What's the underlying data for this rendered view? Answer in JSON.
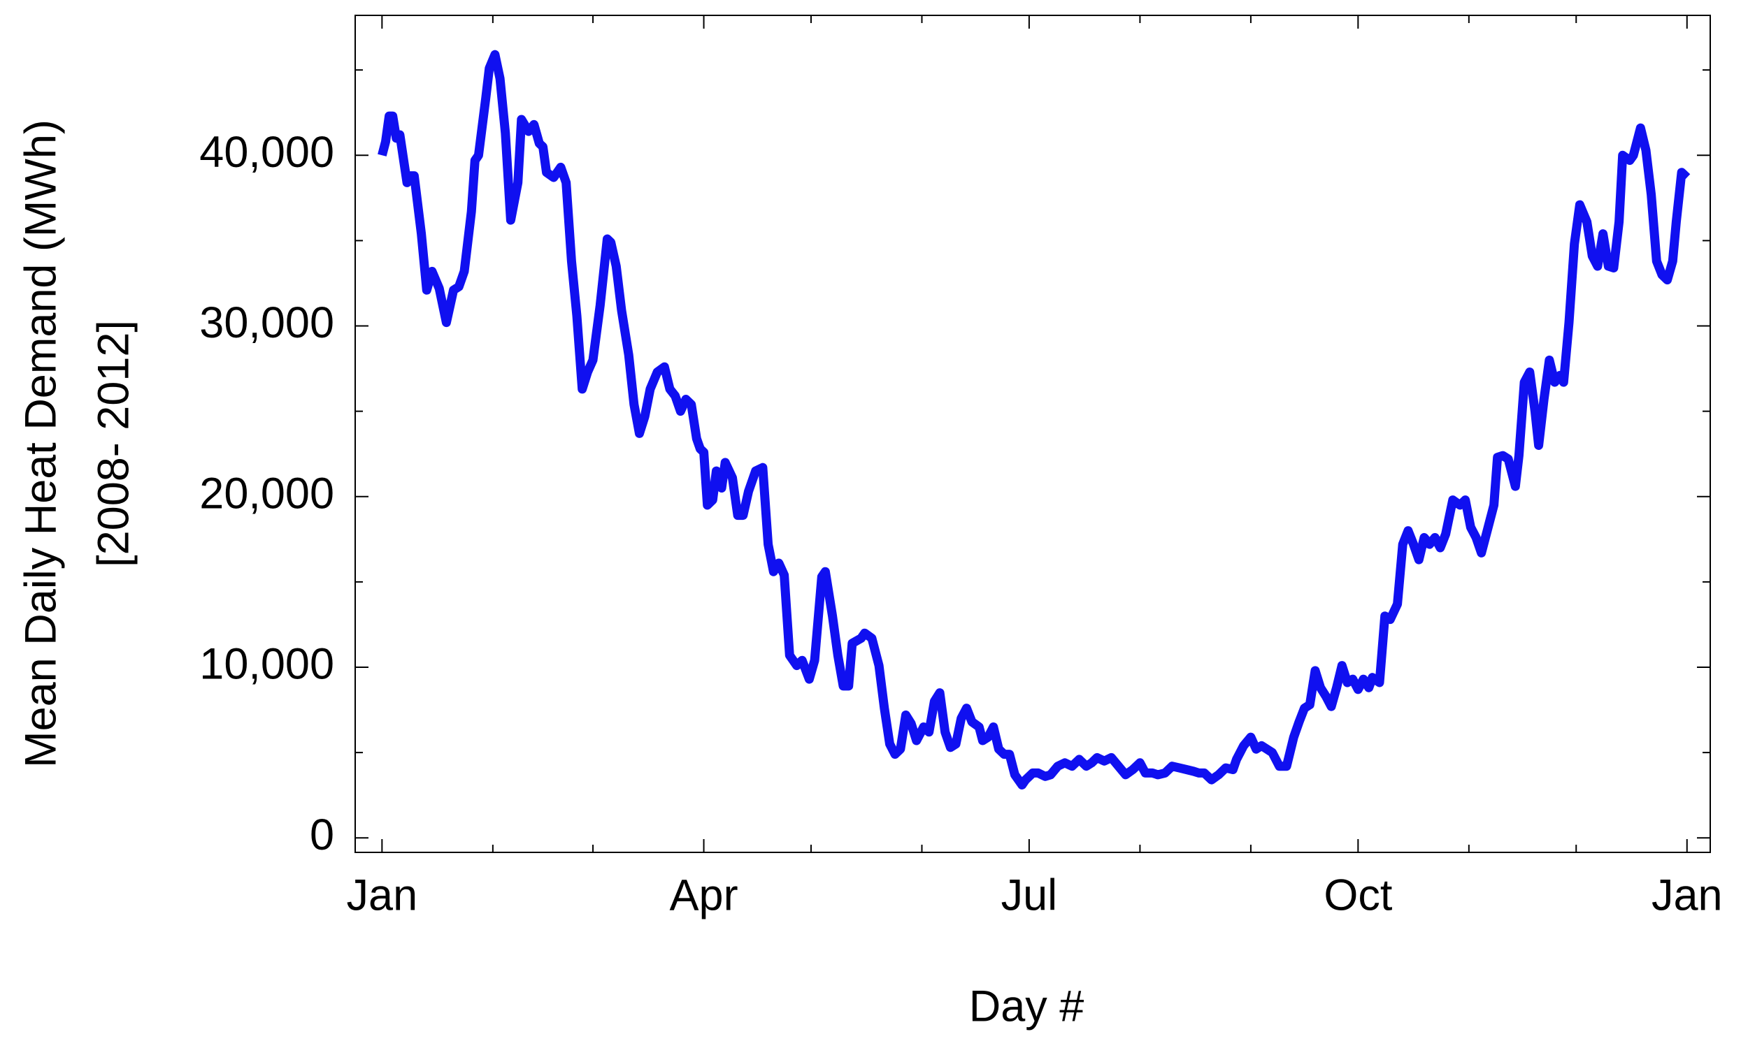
{
  "chart_data": {
    "type": "line",
    "xlabel": "Day #",
    "ylabel": [
      "Mean Daily Heat Demand (MWh)",
      "[2008- 2012]"
    ],
    "color": "#1010f0",
    "xlim": [
      -6.5,
      372.5
    ],
    "ylim": [
      -850,
      48200
    ],
    "xticks": [
      {
        "value": 1,
        "label": "Jan"
      },
      {
        "value": 91,
        "label": "Apr"
      },
      {
        "value": 182,
        "label": "Jul"
      },
      {
        "value": 274,
        "label": "Oct"
      },
      {
        "value": 366,
        "label": "Jan"
      }
    ],
    "xminorticks": [
      32,
      60,
      121,
      152,
      213,
      244,
      305,
      335
    ],
    "yticks": [
      0,
      {
        "value": 10000,
        "label": "10,000"
      },
      {
        "value": 20000,
        "label": "20,000"
      },
      {
        "value": 30000,
        "label": "30,000"
      },
      {
        "value": 40000,
        "label": "40,000"
      }
    ],
    "yminorticks": [
      5000,
      15000,
      25000,
      35000,
      45000
    ],
    "x": [
      1,
      2,
      3,
      4,
      5,
      6,
      8,
      9,
      10,
      12,
      13.5,
      15,
      17,
      19,
      21,
      22.5,
      24,
      26,
      27,
      28,
      30,
      31,
      32.6,
      34,
      35.5,
      37,
      39,
      40,
      42,
      43.5,
      45,
      46,
      47,
      49,
      51,
      52.5,
      54,
      55.5,
      57,
      58.5,
      60,
      62,
      64,
      65,
      66.5,
      68,
      70,
      71.5,
      73,
      74.5,
      76,
      78,
      80,
      81.5,
      83,
      84.5,
      86,
      87.5,
      89,
      90,
      91,
      92,
      93.5,
      94.5,
      96,
      97,
      99,
      100.5,
      102,
      103.5,
      105.5,
      107.5,
      109,
      110.5,
      112,
      113.5,
      115,
      117,
      118.5,
      120.5,
      122,
      124,
      125,
      127,
      128.5,
      130,
      131.5,
      132.5,
      135,
      136,
      138,
      140,
      141.5,
      143,
      144.5,
      146,
      147.5,
      149,
      150.5,
      152.5,
      154,
      155.5,
      157,
      158.5,
      160,
      161.5,
      163,
      164.5,
      166,
      168,
      169,
      170.5,
      172,
      173.5,
      175,
      176.5,
      178,
      180,
      181,
      183,
      184.5,
      186.5,
      188,
      190,
      192,
      194,
      196,
      198,
      199.5,
      201,
      203,
      205,
      207,
      209,
      211,
      213,
      214.5,
      216.5,
      218,
      220,
      222,
      224,
      226,
      228,
      229.5,
      231,
      233,
      235,
      237,
      239,
      240,
      242,
      244,
      245.5,
      247,
      248.5,
      250,
      252,
      254,
      256,
      257.5,
      259,
      260.5,
      262,
      263.5,
      265,
      266.5,
      268,
      269.5,
      271,
      272.5,
      274,
      275.5,
      277,
      278,
      280,
      281.5,
      283,
      285,
      286.5,
      288,
      289.5,
      291,
      292.5,
      294,
      295.5,
      297,
      298.5,
      300.5,
      302.5,
      304,
      305.5,
      307,
      308.5,
      310,
      312,
      313,
      314.5,
      316,
      318,
      319,
      320.5,
      322,
      323.5,
      324.5,
      326,
      327.5,
      329,
      330.5,
      331.5,
      333,
      334.5,
      336,
      338,
      339.5,
      341,
      342.5,
      344,
      345.5,
      347,
      348,
      350,
      351,
      353,
      354.5,
      356,
      357.5,
      359,
      360.5,
      362,
      363,
      364.5,
      366
    ],
    "values": [
      40000,
      40800,
      42300,
      42300,
      41000,
      41200,
      38400,
      38800,
      38800,
      35400,
      32100,
      33200,
      32200,
      30200,
      32100,
      32300,
      33200,
      36700,
      39700,
      40000,
      43300,
      45100,
      45900,
      44500,
      41300,
      36200,
      38400,
      42100,
      41400,
      41800,
      40700,
      40500,
      39000,
      38700,
      39300,
      38400,
      33800,
      30600,
      26300,
      27300,
      28000,
      31200,
      35100,
      34900,
      33500,
      30900,
      28300,
      25400,
      23700,
      24700,
      26300,
      27300,
      27600,
      26300,
      25900,
      25000,
      25700,
      25400,
      23400,
      22800,
      22600,
      19500,
      19800,
      21500,
      20500,
      22000,
      21100,
      18900,
      18900,
      20300,
      21500,
      21700,
      17200,
      15600,
      16100,
      15400,
      10700,
      10100,
      10400,
      9300,
      10400,
      15300,
      15600,
      13000,
      10700,
      8900,
      8900,
      11400,
      11700,
      12000,
      11700,
      10100,
      7600,
      5500,
      4900,
      5200,
      7200,
      6700,
      5700,
      6500,
      6200,
      8000,
      8500,
      6200,
      5300,
      5500,
      7000,
      7600,
      6800,
      6500,
      5700,
      5900,
      6500,
      5200,
      4900,
      4900,
      3700,
      3100,
      3400,
      3800,
      3800,
      3600,
      3700,
      4200,
      4400,
      4200,
      4600,
      4200,
      4400,
      4700,
      4500,
      4700,
      4200,
      3700,
      4000,
      4400,
      3800,
      3800,
      3700,
      3800,
      4200,
      4100,
      4000,
      3900,
      3800,
      3800,
      3400,
      3700,
      4100,
      4000,
      4600,
      5400,
      5900,
      5200,
      5400,
      5200,
      5000,
      4200,
      4200,
      5900,
      6800,
      7600,
      7800,
      9800,
      8800,
      8300,
      7700,
      8800,
      10100,
      9100,
      9300,
      8700,
      9300,
      8800,
      9400,
      9100,
      13000,
      12800,
      13700,
      17200,
      18000,
      17200,
      16300,
      17600,
      17200,
      17600,
      17000,
      17800,
      19800,
      19500,
      19800,
      18200,
      17600,
      16700,
      17900,
      19500,
      22300,
      22400,
      22200,
      20600,
      22400,
      26700,
      27300,
      25000,
      23000,
      25700,
      28000,
      26700,
      27100,
      26700,
      30200,
      34800,
      37100,
      36100,
      34100,
      33500,
      35400,
      33500,
      33400,
      36100,
      40000,
      39700,
      40000,
      41600,
      40300,
      37700,
      33800,
      33000,
      32700,
      33800,
      36100,
      39000,
      38700
    ]
  }
}
